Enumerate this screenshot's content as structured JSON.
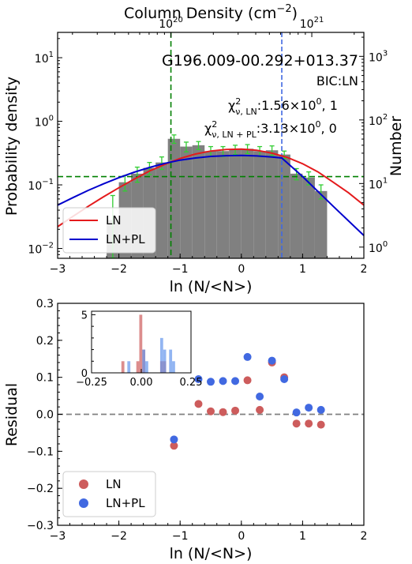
{
  "chart_data": [
    {
      "type": "bar",
      "panel": "pdf",
      "title": "G196.009-00.292+013.37",
      "annotations": [
        "BIC:LN",
        "χ²ν,LN:1.56×10⁰, 1",
        "χ²ν,LN+PL:3.13×10⁰, 0"
      ],
      "annotation_parts": {
        "bic": "BIC:LN",
        "chi_ln_sym": "χ",
        "chi_ln_sup": "2",
        "chi_ln_sub": "ν, LN",
        "chi_ln_val": ":1.56×10",
        "chi_ln_exp": "0",
        "chi_ln_tail": ", 1",
        "chi_pl_sym": "χ",
        "chi_pl_sup": "2",
        "chi_pl_sub": "ν, LN + PL",
        "chi_pl_val": ":3.13×10",
        "chi_pl_exp": "0",
        "chi_pl_tail": ", 0"
      },
      "xlabel": "ln (N/<N>)",
      "ylabel": "Probability density",
      "ylabel_right": "Number",
      "top_xlabel_parts": {
        "main": "Column Density (cm",
        "exp": "−2",
        "close": ")"
      },
      "xlim": [
        -3,
        2
      ],
      "ylim": [
        0.007,
        25
      ],
      "yscale": "log",
      "xticks": [
        "−3",
        "−2",
        "−1",
        "0",
        "1",
        "2"
      ],
      "xtick_values": [
        -3,
        -2,
        -1,
        0,
        1,
        2
      ],
      "yticks": [
        {
          "value": 0.01,
          "mant": "10",
          "exp": "−2"
        },
        {
          "value": 0.1,
          "mant": "10",
          "exp": "−1"
        },
        {
          "value": 1,
          "mant": "10",
          "exp": "0"
        },
        {
          "value": 10,
          "mant": "10",
          "exp": "1"
        }
      ],
      "right_yticks": [
        {
          "count": 1,
          "mant": "10",
          "exp": "0"
        },
        {
          "count": 10,
          "mant": "10",
          "exp": "1"
        },
        {
          "count": 100,
          "mant": "10",
          "exp": "2"
        },
        {
          "count": 1000,
          "mant": "10",
          "exp": "3"
        }
      ],
      "right_axis_density_at_count_1": 0.0105,
      "top_xticks": [
        {
          "x": -1.15,
          "mant": "10",
          "exp": "20"
        },
        {
          "x": 1.15,
          "mant": "10",
          "exp": "21"
        }
      ],
      "histogram": {
        "bin_edges": [
          -2.2,
          -2.0,
          -1.8,
          -1.6,
          -1.4,
          -1.2,
          -1.0,
          -0.8,
          -0.6,
          -0.4,
          -0.2,
          0.0,
          0.2,
          0.4,
          0.6,
          0.8,
          1.0,
          1.2,
          1.4
        ],
        "values": [
          0.028,
          0.11,
          0.15,
          0.185,
          0.225,
          0.53,
          0.4,
          0.42,
          0.34,
          0.34,
          0.36,
          0.37,
          0.34,
          0.35,
          0.3,
          0.15,
          0.13,
          0.08
        ],
        "errors": [
          0.04,
          0.03,
          0.04,
          0.04,
          0.05,
          0.08,
          0.07,
          0.06,
          0.06,
          0.06,
          0.06,
          0.06,
          0.06,
          0.06,
          0.04,
          0.03,
          0.03,
          0.02
        ],
        "color": "#808080",
        "error_color": "#32cd32"
      },
      "series": [
        {
          "name": "LN",
          "color": "#e41a1c",
          "x": [
            -3.0,
            -2.75,
            -2.5,
            -2.25,
            -2.0,
            -1.75,
            -1.5,
            -1.25,
            -1.0,
            -0.75,
            -0.5,
            -0.25,
            0.0,
            0.25,
            0.5,
            0.75,
            1.0,
            1.25,
            1.5,
            1.75,
            2.0
          ],
          "values": [
            0.022,
            0.032,
            0.046,
            0.065,
            0.09,
            0.123,
            0.165,
            0.21,
            0.26,
            0.305,
            0.34,
            0.36,
            0.365,
            0.35,
            0.315,
            0.27,
            0.215,
            0.16,
            0.11,
            0.075,
            0.048
          ]
        },
        {
          "name": "LN+PL",
          "color": "#0000cd",
          "x": [
            -3.0,
            -2.75,
            -2.5,
            -2.25,
            -2.0,
            -1.75,
            -1.5,
            -1.25,
            -1.0,
            -0.75,
            -0.5,
            -0.25,
            0.0,
            0.25,
            0.5,
            0.66,
            1.0,
            1.5,
            2.0
          ],
          "values": [
            0.048,
            0.063,
            0.082,
            0.104,
            0.13,
            0.158,
            0.188,
            0.218,
            0.245,
            0.265,
            0.28,
            0.288,
            0.29,
            0.285,
            0.275,
            0.265,
            0.135,
            0.046,
            0.016
          ]
        }
      ],
      "reference_lines": [
        {
          "orientation": "vertical",
          "x": -1.15,
          "color": "#008000",
          "style": "dashed"
        },
        {
          "orientation": "horizontal",
          "y": 0.135,
          "color": "#008000",
          "style": "dashed"
        },
        {
          "orientation": "vertical",
          "x": 0.66,
          "color": "#4169e1",
          "style": "dashed"
        }
      ],
      "legend": {
        "placement": "lower-left",
        "entries": [
          {
            "label": "LN",
            "color": "#e41a1c"
          },
          {
            "label": "LN+PL",
            "color": "#0000cd"
          }
        ]
      }
    },
    {
      "type": "scatter",
      "panel": "residual",
      "xlabel": "ln (N/<N>)",
      "ylabel": "Residual",
      "xlim": [
        -3,
        2
      ],
      "ylim": [
        -0.3,
        0.3
      ],
      "xticks": [
        "−3",
        "−2",
        "−1",
        "0",
        "1",
        "2"
      ],
      "xtick_values": [
        -3,
        -2,
        -1,
        0,
        1,
        2
      ],
      "yticks": [
        "−0.3",
        "−0.2",
        "−0.1",
        "0.0",
        "0.1",
        "0.2",
        "0.3"
      ],
      "ytick_values": [
        -0.3,
        -0.2,
        -0.1,
        0.0,
        0.1,
        0.2,
        0.3
      ],
      "zero_line": {
        "y": 0,
        "color": "#808080",
        "style": "dashed"
      },
      "series": [
        {
          "name": "LN",
          "color": "#cd5c5c",
          "x": [
            -1.1,
            -0.7,
            -0.5,
            -0.3,
            -0.1,
            0.1,
            0.3,
            0.5,
            0.7,
            0.9,
            1.1,
            1.3
          ],
          "values": [
            -0.085,
            0.028,
            0.008,
            0.006,
            0.01,
            0.092,
            0.012,
            0.14,
            0.1,
            -0.025,
            -0.025,
            -0.028
          ]
        },
        {
          "name": "LN+PL",
          "color": "#4169e1",
          "x": [
            -1.1,
            -0.7,
            -0.5,
            -0.3,
            -0.1,
            0.1,
            0.3,
            0.5,
            0.7,
            0.9,
            1.1,
            1.3
          ],
          "values": [
            -0.068,
            0.095,
            0.088,
            0.09,
            0.09,
            0.155,
            0.048,
            0.145,
            0.095,
            0.005,
            0.018,
            0.012
          ]
        }
      ],
      "legend": {
        "placement": "lower-left",
        "entries": [
          {
            "label": "LN",
            "color": "#cd5c5c"
          },
          {
            "label": "LN+PL",
            "color": "#4169e1"
          }
        ]
      }
    },
    {
      "type": "bar",
      "panel": "inset-histogram",
      "xlim": [
        -0.25,
        0.25
      ],
      "ylim": [
        0,
        5.3
      ],
      "xticks": [
        "−0.25",
        "0.00",
        "0.25"
      ],
      "xtick_values": [
        -0.25,
        0.0,
        0.25
      ],
      "yticks": [
        "0",
        "5"
      ],
      "ytick_values": [
        0,
        5
      ],
      "series": [
        {
          "name": "LN",
          "color": "#cd5c5c",
          "bin_edges": [
            -0.1,
            -0.085,
            -0.07,
            -0.055,
            -0.04,
            -0.025,
            -0.01,
            0.005,
            0.02,
            0.035,
            0.05,
            0.065,
            0.08,
            0.095,
            0.11,
            0.125,
            0.14
          ],
          "values": [
            1,
            0,
            0,
            0,
            0,
            1,
            5,
            2,
            0,
            0,
            0,
            0,
            0,
            1,
            1,
            0
          ]
        },
        {
          "name": "LN+PL",
          "color": "#6495ed",
          "bin_edges": [
            -0.07,
            -0.055,
            -0.04,
            -0.025,
            -0.01,
            0.005,
            0.02,
            0.035,
            0.05,
            0.065,
            0.08,
            0.095,
            0.11,
            0.125,
            0.14,
            0.155,
            0.17
          ],
          "values": [
            1,
            0,
            0,
            0,
            0,
            2,
            1,
            0,
            0,
            0,
            0,
            3,
            2,
            0,
            2,
            1
          ]
        }
      ]
    }
  ]
}
